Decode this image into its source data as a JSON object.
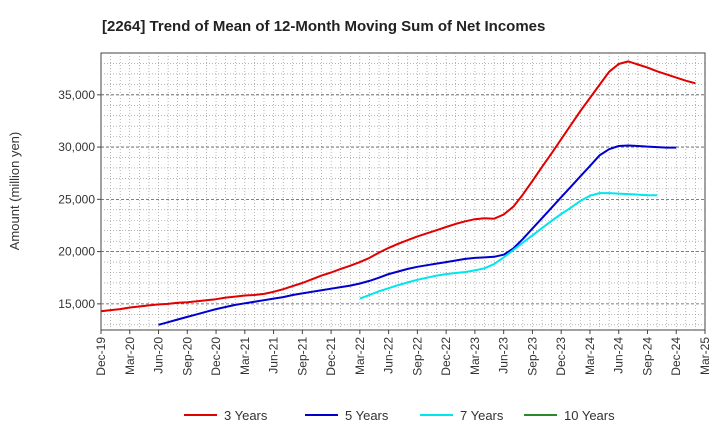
{
  "chart_data": {
    "type": "line",
    "title": "[2264]  Trend of Mean of 12-Month Moving Sum of Net Incomes",
    "ylabel": "Amount (million yen)",
    "xlabel": "",
    "ylim": [
      12500,
      39000
    ],
    "yticks": [
      15000,
      20000,
      25000,
      30000,
      35000
    ],
    "ytick_labels": [
      "15,000",
      "20,000",
      "25,000",
      "30,000",
      "35,000"
    ],
    "x_ticks": [
      "Dec-19",
      "Mar-20",
      "Jun-20",
      "Sep-20",
      "Dec-20",
      "Mar-21",
      "Jun-21",
      "Sep-21",
      "Dec-21",
      "Mar-22",
      "Jun-22",
      "Sep-22",
      "Dec-22",
      "Mar-23",
      "Jun-23",
      "Sep-23",
      "Dec-23",
      "Mar-24",
      "Jun-24",
      "Sep-24",
      "Dec-24",
      "Mar-25"
    ],
    "grid": true,
    "legend_position": "bottom",
    "series": [
      {
        "name": "3 Years",
        "color": "#e00000",
        "start_index": 0,
        "values": [
          14300,
          14400,
          14500,
          14650,
          14750,
          14850,
          14950,
          15000,
          15100,
          15150,
          15250,
          15350,
          15450,
          15600,
          15700,
          15800,
          15850,
          15950,
          16150,
          16400,
          16700,
          17000,
          17350,
          17700,
          18000,
          18350,
          18650,
          19000,
          19400,
          19900,
          20350,
          20750,
          21100,
          21450,
          21750,
          22050,
          22350,
          22650,
          22900,
          23100,
          23200,
          23150,
          23550,
          24300,
          25450,
          26750,
          28100,
          29400,
          30750,
          32100,
          33450,
          34700,
          35950,
          37200,
          37950,
          38200,
          37900,
          37600,
          37250,
          36950,
          36650,
          36350,
          36100
        ]
      },
      {
        "name": "5 Years",
        "color": "#0000cc",
        "start_index": 6,
        "values": [
          13000,
          13250,
          13500,
          13750,
          14000,
          14250,
          14500,
          14700,
          14900,
          15050,
          15200,
          15350,
          15500,
          15650,
          15850,
          16000,
          16150,
          16300,
          16450,
          16600,
          16750,
          16950,
          17200,
          17500,
          17850,
          18100,
          18350,
          18550,
          18700,
          18850,
          19000,
          19150,
          19300,
          19400,
          19450,
          19500,
          19700,
          20300,
          21200,
          22200,
          23200,
          24200,
          25200,
          26200,
          27200,
          28200,
          29200,
          29800,
          30100,
          30150,
          30100,
          30050,
          30000,
          29950,
          29950
        ]
      },
      {
        "name": "7 Years",
        "color": "#00e5ee",
        "start_index": 27,
        "values": [
          15500,
          15850,
          16200,
          16500,
          16800,
          17050,
          17300,
          17500,
          17700,
          17850,
          17950,
          18050,
          18200,
          18400,
          18800,
          19450,
          20150,
          20850,
          21550,
          22250,
          22950,
          23600,
          24200,
          24850,
          25350,
          25600,
          25600,
          25550,
          25500,
          25450,
          25400,
          25400
        ]
      },
      {
        "name": "10 Years",
        "color": "#2a8a2a",
        "start_index": 0,
        "values": []
      }
    ]
  }
}
